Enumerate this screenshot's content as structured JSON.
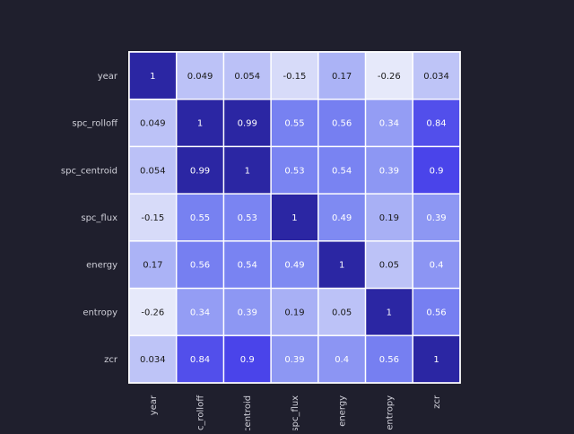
{
  "chart_data": {
    "type": "heatmap",
    "rows": [
      "year",
      "spc_rolloff",
      "spc_centroid",
      "spc_flux",
      "energy",
      "entropy",
      "zcr"
    ],
    "cols": [
      "year",
      "spc_rolloff",
      "spc_centroid",
      "spc_flux",
      "energy",
      "entropy",
      "zcr"
    ],
    "col_tick_labels": [
      "year",
      "c_rolloff",
      "centroid",
      "spc_flux",
      "energy",
      "entropy",
      "zcr"
    ],
    "values": [
      [
        1,
        0.049,
        0.054,
        -0.15,
        0.17,
        -0.26,
        0.034
      ],
      [
        0.049,
        1,
        0.99,
        0.55,
        0.56,
        0.34,
        0.84
      ],
      [
        0.054,
        0.99,
        1,
        0.53,
        0.54,
        0.39,
        0.9
      ],
      [
        -0.15,
        0.55,
        0.53,
        1,
        0.49,
        0.19,
        0.39
      ],
      [
        0.17,
        0.56,
        0.54,
        0.49,
        1,
        0.05,
        0.4
      ],
      [
        -0.26,
        0.34,
        0.39,
        0.19,
        0.05,
        1,
        0.56
      ],
      [
        0.034,
        0.84,
        0.9,
        0.39,
        0.4,
        0.56,
        1
      ]
    ],
    "cell_labels": [
      [
        "1",
        "0.049",
        "0.054",
        "-0.15",
        "0.17",
        "-0.26",
        "0.034"
      ],
      [
        "0.049",
        "1",
        "0.99",
        "0.55",
        "0.56",
        "0.34",
        "0.84"
      ],
      [
        "0.054",
        "0.99",
        "1",
        "0.53",
        "0.54",
        "0.39",
        "0.9"
      ],
      [
        "-0.15",
        "0.55",
        "0.53",
        "1",
        "0.49",
        "0.19",
        "0.39"
      ],
      [
        "0.17",
        "0.56",
        "0.54",
        "0.49",
        "1",
        "0.05",
        "0.4"
      ],
      [
        "-0.26",
        "0.34",
        "0.39",
        "0.19",
        "0.05",
        "1",
        "0.56"
      ],
      [
        "0.034",
        "0.84",
        "0.9",
        "0.39",
        "0.4",
        "0.56",
        "1"
      ]
    ],
    "value_range": [
      -0.26,
      1
    ],
    "grid": true,
    "title": "",
    "xlabel": "",
    "ylabel": "",
    "colors": {
      "background": "#1f1f2d",
      "low": "#e6e9fa",
      "mid": "#7b86f2",
      "high_bright": "#3d33e8",
      "high_dark": "#2b26a3",
      "cell_border": "#ffffff",
      "text_dark": "#1a1a1a",
      "text_light": "#ffffff",
      "tick_text": "#cfcfd8"
    }
  }
}
